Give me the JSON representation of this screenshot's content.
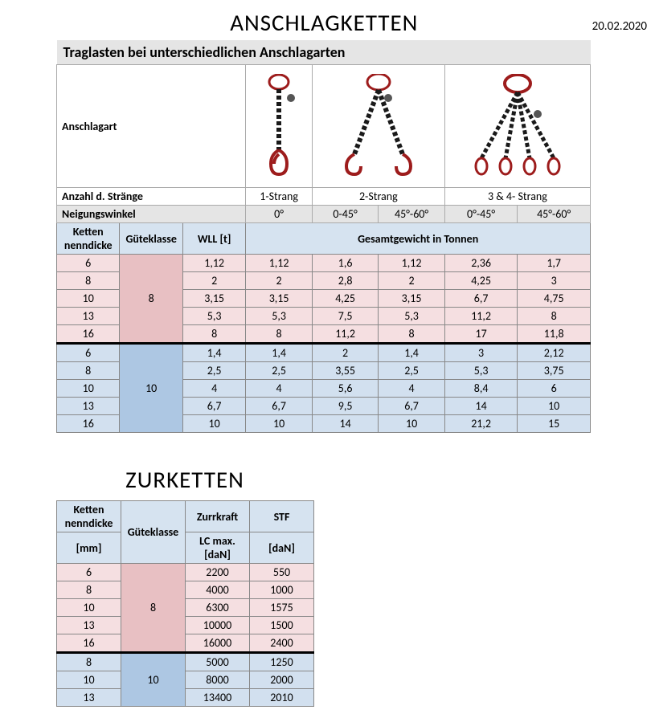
{
  "date": "20.02.2020",
  "anschlag": {
    "title": "ANSCHLAGKETTEN",
    "subtitle": "Traglasten bei unterschiedlichen Anschlagarten",
    "row_anschlagart": "Anschlagart",
    "row_strands": "Anzahl d. Stränge",
    "strands": [
      "1-Strang",
      "2-Strang",
      "3 & 4- Strang"
    ],
    "row_angle": "Neigungswinkel",
    "angles": [
      "0°",
      "0-45°",
      "45°-60°",
      "0°-45°",
      "45°-60°"
    ],
    "col_headers": {
      "ketten": "Ketten nenndicke",
      "guete": "Güteklasse",
      "wll": "WLL [t]",
      "gesamt": "Gesamtgewicht in Tonnen"
    },
    "group8": {
      "label": "8",
      "rows": [
        {
          "k": "6",
          "w": "1,12",
          "v": [
            "1,12",
            "1,6",
            "1,12",
            "2,36",
            "1,7"
          ]
        },
        {
          "k": "8",
          "w": "2",
          "v": [
            "2",
            "2,8",
            "2",
            "4,25",
            "3"
          ]
        },
        {
          "k": "10",
          "w": "3,15",
          "v": [
            "3,15",
            "4,25",
            "3,15",
            "6,7",
            "4,75"
          ]
        },
        {
          "k": "13",
          "w": "5,3",
          "v": [
            "5,3",
            "7,5",
            "5,3",
            "11,2",
            "8"
          ]
        },
        {
          "k": "16",
          "w": "8",
          "v": [
            "8",
            "11,2",
            "8",
            "17",
            "11,8"
          ]
        }
      ]
    },
    "group10": {
      "label": "10",
      "rows": [
        {
          "k": "6",
          "w": "1,4",
          "v": [
            "1,4",
            "2",
            "1,4",
            "3",
            "2,12"
          ]
        },
        {
          "k": "8",
          "w": "2,5",
          "v": [
            "2,5",
            "3,55",
            "2,5",
            "5,3",
            "3,75"
          ]
        },
        {
          "k": "10",
          "w": "4",
          "v": [
            "4",
            "5,6",
            "4",
            "8,4",
            "6"
          ]
        },
        {
          "k": "13",
          "w": "6,7",
          "v": [
            "6,7",
            "9,5",
            "6,7",
            "14",
            "10"
          ]
        },
        {
          "k": "16",
          "w": "10",
          "v": [
            "10",
            "14",
            "10",
            "21,2",
            "15"
          ]
        }
      ]
    }
  },
  "zur": {
    "title": "ZURKETTEN",
    "col_headers": {
      "ketten": "Ketten nenndicke",
      "ketten_unit": "[mm]",
      "guete": "Güteklasse",
      "zurr": "Zurrkraft",
      "zurr_unit": "LC max. [daN]",
      "stf": "STF",
      "stf_unit": "[daN]"
    },
    "group8": {
      "label": "8",
      "rows": [
        {
          "k": "6",
          "z": "2200",
          "s": "550"
        },
        {
          "k": "8",
          "z": "4000",
          "s": "1000"
        },
        {
          "k": "10",
          "z": "6300",
          "s": "1575"
        },
        {
          "k": "13",
          "z": "10000",
          "s": "1500"
        },
        {
          "k": "16",
          "z": "16000",
          "s": "2400"
        }
      ]
    },
    "group10": {
      "label": "10",
      "rows": [
        {
          "k": "8",
          "z": "5000",
          "s": "1250"
        },
        {
          "k": "10",
          "z": "8000",
          "s": "2000"
        },
        {
          "k": "13",
          "z": "13400",
          "s": "2010"
        }
      ]
    }
  },
  "colors": {
    "pink": "#e8c0c3",
    "blue": "#adc7e3",
    "header_bg": "#d6e3f0",
    "gray": "#e5e5e5",
    "chain_red": "#9d1c1c",
    "chain_black": "#1a1a1a"
  }
}
